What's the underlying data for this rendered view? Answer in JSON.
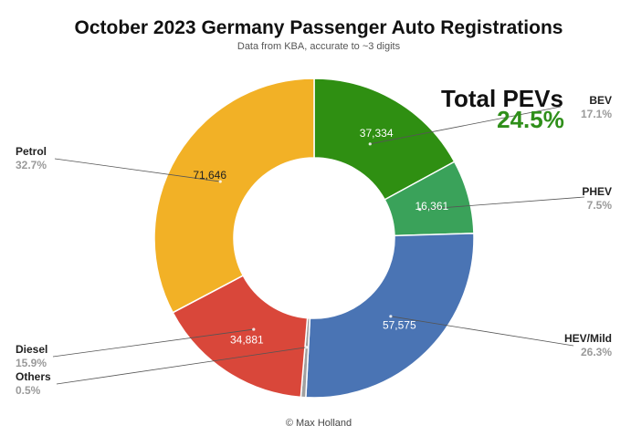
{
  "chart_data": {
    "type": "pie",
    "style": "donut",
    "title": "October 2023 Germany Passenger Auto Registrations",
    "subtitle": "Data from KBA, accurate to ~3 digits",
    "credit": "© Max Holland",
    "slices": [
      {
        "name": "BEV",
        "value": 37334,
        "value_label": "37,334",
        "percent": "17.1%",
        "color": "#2f8f12",
        "value_text_color": "#ffffff"
      },
      {
        "name": "PHEV",
        "value": 16361,
        "value_label": "16,361",
        "percent": "7.5%",
        "color": "#3aa25a",
        "value_text_color": "#ffffff"
      },
      {
        "name": "HEV/Mild",
        "value": 57575,
        "value_label": "57,575",
        "percent": "26.3%",
        "color": "#4a74b4",
        "value_text_color": "#ffffff"
      },
      {
        "name": "Others",
        "value": 1100,
        "value_label": "",
        "percent": "0.5%",
        "color": "#a0a0a0",
        "value_text_color": "#ffffff"
      },
      {
        "name": "Diesel",
        "value": 34881,
        "value_label": "34,881",
        "percent": "15.9%",
        "color": "#d9473a",
        "value_text_color": "#ffffff"
      },
      {
        "name": "Petrol",
        "value": 71646,
        "value_label": "71,646",
        "percent": "32.7%",
        "color": "#f2b126",
        "value_text_color": "#222222"
      }
    ],
    "annotation": {
      "label": "Total PEVs",
      "value": "24.5%",
      "color": "#2f8f1a"
    },
    "legend": "none"
  }
}
